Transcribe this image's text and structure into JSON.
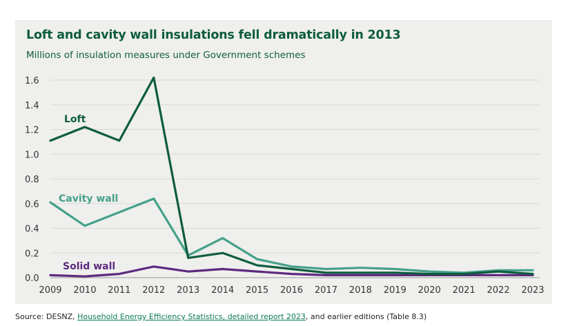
{
  "colors": {
    "loft": "#0d5c3e",
    "cavity": "#44a08a",
    "solid": "#5c2a7e",
    "title": "#0d5c3e",
    "grid": "#d8d8d4",
    "axis_text": "#333333"
  },
  "chart_data": {
    "type": "line",
    "title": "Loft and cavity wall insulations fell dramatically in 2013",
    "subtitle": "Millions of insulation measures  under Government schemes",
    "xlabel": "",
    "ylabel": "",
    "ylim": [
      0,
      1.6
    ],
    "yticks": [
      "0.0",
      "0.2",
      "0.4",
      "0.6",
      "0.8",
      "1.0",
      "1.2",
      "1.4",
      "1.6"
    ],
    "x": [
      "2009",
      "2010",
      "2011",
      "2012",
      "2013",
      "2014",
      "2015",
      "2016",
      "2017",
      "2018",
      "2019",
      "2020",
      "2021",
      "2022",
      "2023"
    ],
    "series": [
      {
        "name": "Loft",
        "key": "loft",
        "values": [
          1.11,
          1.22,
          1.11,
          1.62,
          0.16,
          0.2,
          0.1,
          0.07,
          0.04,
          0.04,
          0.04,
          0.03,
          0.03,
          0.05,
          0.03
        ]
      },
      {
        "name": "Cavity wall",
        "key": "cavity",
        "values": [
          0.61,
          0.42,
          0.53,
          0.64,
          0.18,
          0.32,
          0.15,
          0.09,
          0.07,
          0.08,
          0.07,
          0.05,
          0.04,
          0.06,
          0.06
        ]
      },
      {
        "name": "Solid wall",
        "key": "solid",
        "values": [
          0.02,
          0.01,
          0.03,
          0.09,
          0.05,
          0.07,
          0.05,
          0.03,
          0.02,
          0.02,
          0.02,
          0.02,
          0.02,
          0.02,
          0.02
        ]
      }
    ]
  },
  "source": {
    "prefix": "Source: DESNZ, ",
    "link": "Household Energy Efficiency Statistics, detailed report 2023",
    "suffix": ", and earlier editions (Table 8.3)"
  }
}
